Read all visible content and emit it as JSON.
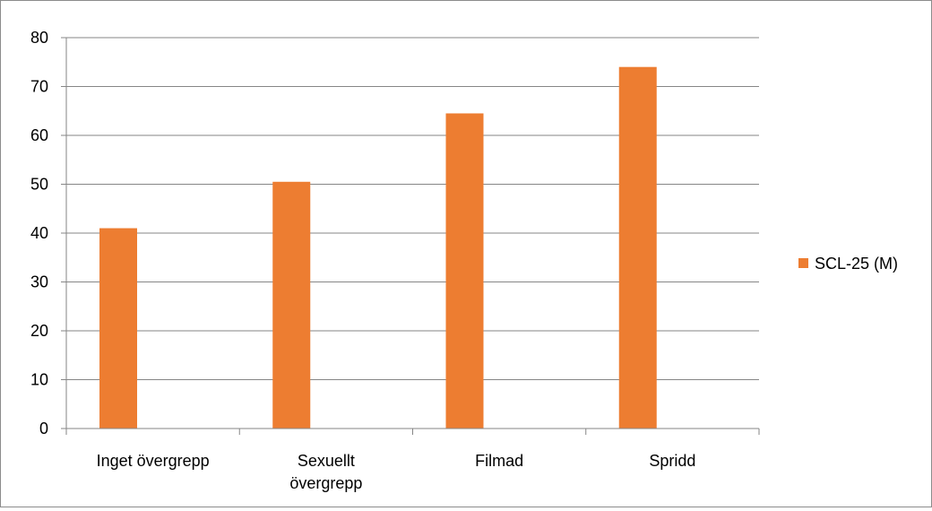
{
  "chart_data": {
    "type": "bar",
    "categories": [
      "Inget övergrepp",
      "Sexuellt övergrepp",
      "Filmad",
      "Spridd"
    ],
    "category_label_lines": [
      [
        "Inget övergrepp"
      ],
      [
        "Sexuellt",
        "övergrepp"
      ],
      [
        "Filmad"
      ],
      [
        "Spridd"
      ]
    ],
    "series": [
      {
        "name": "SCL-25 (M)",
        "values": [
          41,
          50.5,
          64.5,
          74
        ],
        "color": "#ED7D31"
      }
    ],
    "ylim": [
      0,
      80
    ],
    "yticks": [
      0,
      10,
      20,
      30,
      40,
      50,
      60,
      70,
      80
    ],
    "grid": true,
    "gridline_color": "#868686",
    "legend_position": "right",
    "title": "",
    "xlabel": "",
    "ylabel": ""
  }
}
